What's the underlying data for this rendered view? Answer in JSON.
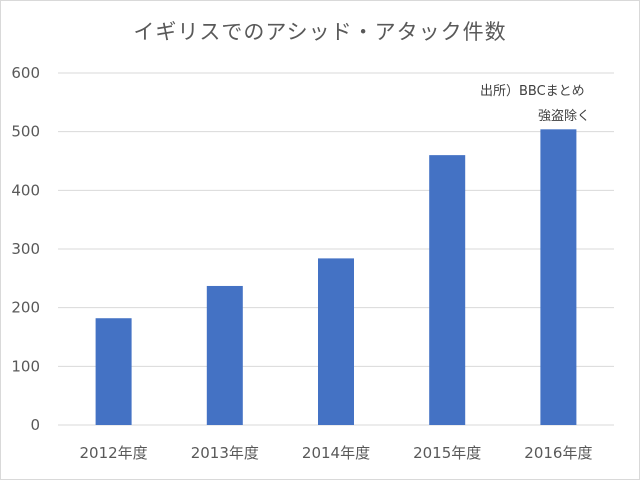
{
  "chart_data": {
    "type": "bar",
    "title": "イギリスでのアシッド・アタック件数",
    "categories": [
      "2012年度",
      "2013年度",
      "2014年度",
      "2015年度",
      "2016年度"
    ],
    "values": [
      182,
      237,
      284,
      460,
      504
    ],
    "ylim": [
      0,
      600
    ],
    "yticks": [
      0,
      100,
      200,
      300,
      400,
      500,
      600
    ],
    "xlabel": "",
    "ylabel": "",
    "grid": true,
    "bar_color": "#4472c4",
    "gridline_color": "#d9d9d9",
    "annotations": [
      "出所）BBCまとめ",
      "強盗除く"
    ]
  }
}
